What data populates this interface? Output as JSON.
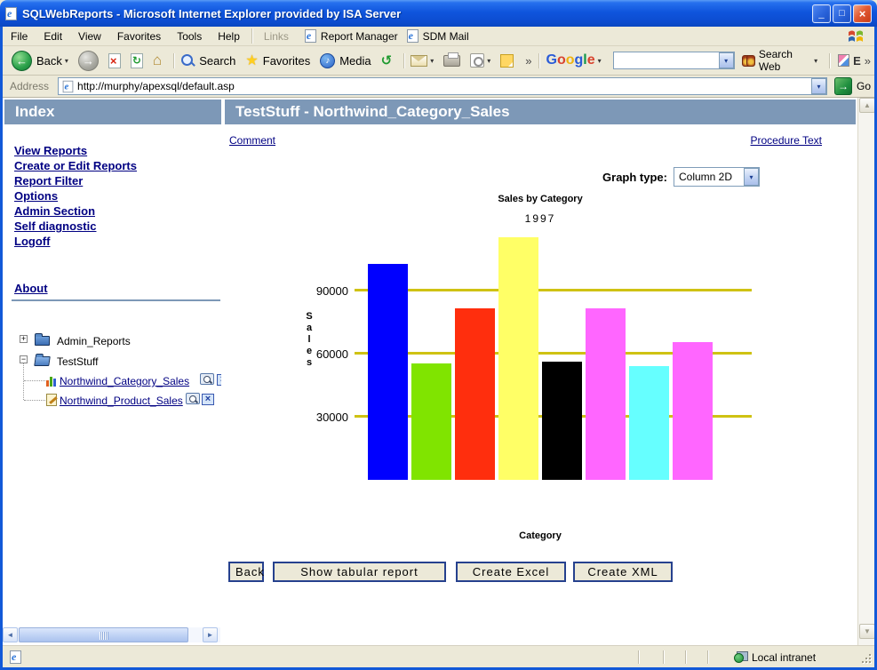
{
  "window": {
    "title": "SQLWebReports - Microsoft Internet Explorer provided by ISA Server"
  },
  "icons": {
    "ie_e": "e",
    "minimize": "─",
    "maximize": "□",
    "close": "×",
    "back_arrow": "←",
    "forward_arrow": "→",
    "stop_x": "×",
    "refresh": "↻",
    "home": "⌂",
    "history": "↺",
    "note": "♪",
    "star": "★",
    "dropdown": "▾",
    "chevron": "»",
    "plus": "+",
    "minus": "−",
    "scroll_left": "◄",
    "scroll_right": "►",
    "scroll_up": "▲",
    "scroll_down": "▼",
    "go_arrow": "→"
  },
  "menubar": {
    "items": [
      "File",
      "Edit",
      "View",
      "Favorites",
      "Tools",
      "Help"
    ],
    "links_label": "Links",
    "link_buttons": [
      {
        "label": "Report Manager"
      },
      {
        "label": "SDM Mail"
      }
    ]
  },
  "toolbar": {
    "back_label": "Back",
    "search_label": "Search",
    "favorites_label": "Favorites",
    "media_label": "Media",
    "google": {
      "logo_letters": [
        "G",
        "o",
        "o",
        "g",
        "l",
        "e"
      ],
      "search_input_value": "",
      "search_web_label": "Search Web",
      "partial_label": "E"
    }
  },
  "address": {
    "label": "Address",
    "url": "http://murphy/apexsql/default.asp",
    "go_label": "Go"
  },
  "sidebar": {
    "header": "Index",
    "links": [
      "View Reports",
      "Create or Edit Reports",
      "Report Filter",
      "Options",
      "Admin Section",
      "Self diagnostic",
      "Logoff"
    ],
    "about": "About",
    "tree": {
      "folders": [
        {
          "label": "Admin_Reports",
          "state": "collapsed"
        },
        {
          "label": "TestStuff",
          "state": "expanded"
        }
      ],
      "reports": [
        {
          "label": "Northwind_Category_Sales"
        },
        {
          "label": "Northwind_Product_Sales"
        }
      ]
    }
  },
  "main": {
    "header": "TestStuff - Northwind_Category_Sales",
    "comment_link": "Comment",
    "procedure_link": "Procedure Text",
    "graph_type_label": "Graph type:",
    "graph_type_value": "Column 2D",
    "buttons": [
      "Back",
      "Show tabular report",
      "Create Excel",
      "Create XML"
    ]
  },
  "chart_data": {
    "type": "bar",
    "title": "Sales by Category",
    "subtitle": "1997",
    "xlabel": "Category",
    "ylabel": "Sales",
    "yticks": [
      30000,
      60000,
      90000
    ],
    "ylim": [
      0,
      116000
    ],
    "categories": [
      "",
      "",
      "",
      "",
      "",
      "",
      "",
      ""
    ],
    "values": [
      102500,
      55400,
      81500,
      115400,
      56300,
      81600,
      54000,
      65500
    ],
    "colors": [
      "#0000ff",
      "#80e400",
      "#ff2e0d",
      "#ffff66",
      "#000000",
      "#ff66ff",
      "#66ffff",
      "#ff66ff"
    ],
    "gridline_color": "#cfc213",
    "grid": "horizontal",
    "legend": "none",
    "x_tick_labels_shown": false
  },
  "statusbar": {
    "zone_label": "Local intranet"
  },
  "colors": {
    "frame_header": "#7d98b7",
    "link": "#000082",
    "chrome": "#ece9d8"
  }
}
